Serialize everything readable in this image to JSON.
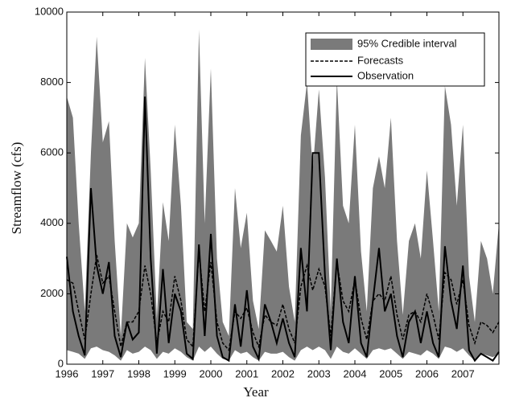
{
  "chart_data": {
    "type": "line",
    "xlabel": "Year",
    "ylabel": "Streamflow (cfs)",
    "xlim": [
      1996,
      2008
    ],
    "ylim": [
      0,
      10000
    ],
    "xticks": [
      1996,
      1997,
      1998,
      1999,
      2000,
      2001,
      2002,
      2003,
      2004,
      2005,
      2006,
      2007
    ],
    "yticks": [
      0,
      2000,
      4000,
      6000,
      8000,
      10000
    ],
    "legend": "upper right",
    "x": [
      1996,
      1996.17,
      1996.33,
      1996.5,
      1996.67,
      1996.83,
      1997,
      1997.17,
      1997.33,
      1997.5,
      1997.67,
      1997.83,
      1998,
      1998.17,
      1998.33,
      1998.5,
      1998.67,
      1998.83,
      1999,
      1999.17,
      1999.33,
      1999.5,
      1999.67,
      1999.83,
      2000,
      2000.17,
      2000.33,
      2000.5,
      2000.67,
      2000.83,
      2001,
      2001.17,
      2001.33,
      2001.5,
      2001.67,
      2001.83,
      2002,
      2002.17,
      2002.33,
      2002.5,
      2002.67,
      2002.83,
      2003,
      2003.17,
      2003.33,
      2003.5,
      2003.67,
      2003.83,
      2004,
      2004.17,
      2004.33,
      2004.5,
      2004.67,
      2004.83,
      2005,
      2005.17,
      2005.33,
      2005.5,
      2005.67,
      2005.83,
      2006,
      2006.17,
      2006.33,
      2006.5,
      2006.67,
      2006.83,
      2007,
      2007.17,
      2007.33,
      2007.5,
      2007.67,
      2007.83,
      2008
    ],
    "interval": {
      "name": "95% Credible interval",
      "color": "#7a7a7a",
      "upper": [
        7600,
        7000,
        4000,
        1500,
        6000,
        9300,
        6300,
        6900,
        3500,
        800,
        4000,
        3600,
        4000,
        8700,
        5500,
        1300,
        4600,
        3500,
        6800,
        4500,
        1200,
        1000,
        9500,
        4000,
        8400,
        3000,
        1200,
        800,
        5000,
        3300,
        4300,
        1800,
        1000,
        3800,
        3500,
        3200,
        4500,
        2200,
        1200,
        6500,
        8000,
        5500,
        7800,
        5300,
        1500,
        8100,
        4500,
        4000,
        6800,
        3200,
        1500,
        5000,
        5900,
        5000,
        7000,
        3500,
        1400,
        3500,
        4000,
        3000,
        5500,
        3500,
        1500,
        7900,
        6800,
        4500,
        6800,
        2500,
        1200,
        3500,
        3000,
        2000,
        4000
      ],
      "lower": [
        400,
        350,
        300,
        150,
        450,
        500,
        400,
        350,
        250,
        100,
        400,
        300,
        350,
        500,
        400,
        150,
        350,
        300,
        450,
        350,
        200,
        100,
        500,
        350,
        500,
        300,
        150,
        100,
        400,
        300,
        350,
        200,
        100,
        350,
        300,
        300,
        350,
        200,
        100,
        400,
        500,
        400,
        500,
        400,
        150,
        500,
        350,
        300,
        450,
        300,
        150,
        400,
        450,
        400,
        450,
        300,
        150,
        350,
        300,
        250,
        400,
        300,
        150,
        500,
        450,
        350,
        450,
        250,
        100,
        300,
        250,
        200,
        300
      ]
    },
    "series": [
      {
        "name": "Forecasts",
        "color": "#000000",
        "linestyle": "dashed",
        "values": [
          2400,
          2300,
          1500,
          700,
          2000,
          3100,
          2300,
          2500,
          1500,
          500,
          1200,
          1200,
          1500,
          2800,
          2000,
          600,
          1500,
          1200,
          2500,
          1800,
          700,
          500,
          3200,
          1500,
          2900,
          1200,
          600,
          400,
          1500,
          1300,
          1600,
          900,
          500,
          1400,
          1200,
          1100,
          1700,
          1000,
          600,
          2200,
          2800,
          2100,
          2700,
          2200,
          800,
          2900,
          1800,
          1500,
          2400,
          1300,
          700,
          1800,
          2000,
          1800,
          2500,
          1400,
          700,
          1400,
          1500,
          1200,
          2000,
          1400,
          700,
          2600,
          2400,
          1700,
          2400,
          1100,
          600,
          1200,
          1100,
          900,
          1200
        ]
      },
      {
        "name": "Observation",
        "color": "#000000",
        "linestyle": "solid",
        "values": [
          3050,
          1500,
          800,
          250,
          5000,
          2800,
          2000,
          2900,
          800,
          200,
          1200,
          700,
          900,
          7600,
          3000,
          300,
          2700,
          600,
          2000,
          1500,
          300,
          150,
          3400,
          800,
          3700,
          800,
          200,
          100,
          1700,
          500,
          2100,
          500,
          150,
          1700,
          1200,
          600,
          1300,
          600,
          200,
          3300,
          1500,
          6000,
          6000,
          2500,
          400,
          3000,
          1200,
          600,
          2500,
          600,
          200,
          1800,
          3300,
          1500,
          2000,
          800,
          200,
          1200,
          1500,
          600,
          1500,
          600,
          200,
          3350,
          1800,
          1000,
          2800,
          400,
          100,
          300,
          200,
          100,
          350
        ]
      }
    ]
  }
}
